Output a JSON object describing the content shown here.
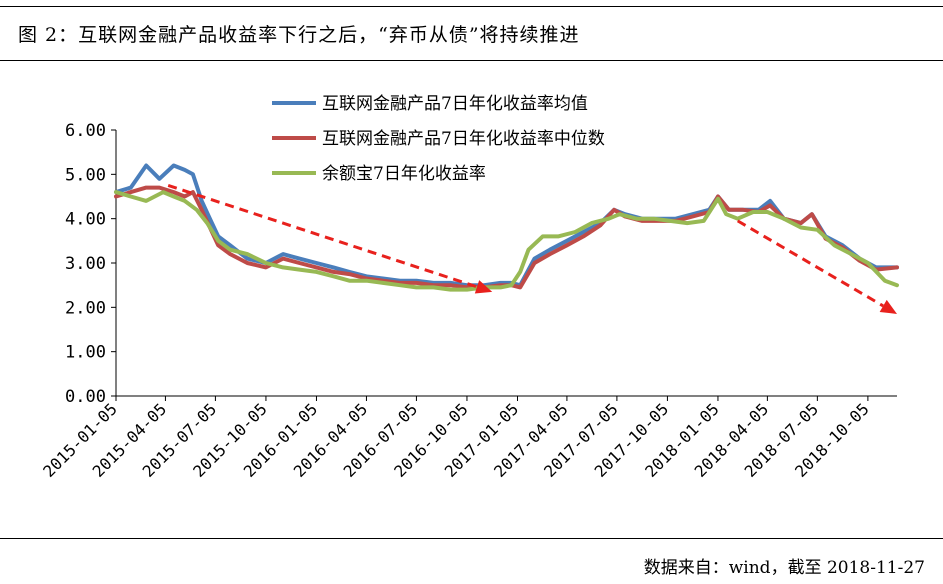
{
  "figure": {
    "title": "图 2：互联网金融产品收益率下行之后，“弃币从债”将持续推进",
    "source": "数据来自：wind，截至 2018-11-27"
  },
  "chart_data": {
    "type": "line",
    "ylim": [
      0,
      6
    ],
    "y_ticks": [
      "0.00",
      "1.00",
      "2.00",
      "3.00",
      "4.00",
      "5.00",
      "6.00"
    ],
    "x_range": [
      "2015-01-05",
      "2018-11-27"
    ],
    "x_ticks": [
      "2015-01-05",
      "2015-04-05",
      "2015-07-05",
      "2015-10-05",
      "2016-01-05",
      "2016-04-05",
      "2016-07-05",
      "2016-10-05",
      "2017-01-05",
      "2017-04-05",
      "2017-07-05",
      "2017-10-05",
      "2018-01-05",
      "2018-04-05",
      "2018-07-05",
      "2018-10-05"
    ],
    "grid": false,
    "legend": "top-left",
    "series": [
      {
        "name": "互联网金融产品7日年化收益率均值",
        "color": "#4a7ebb",
        "x": [
          "2015-01-05",
          "2015-02-01",
          "2015-03-01",
          "2015-03-25",
          "2015-04-20",
          "2015-05-10",
          "2015-05-25",
          "2015-06-10",
          "2015-06-25",
          "2015-07-10",
          "2015-08-01",
          "2015-09-01",
          "2015-10-05",
          "2015-11-05",
          "2015-12-05",
          "2016-01-05",
          "2016-02-05",
          "2016-03-05",
          "2016-04-05",
          "2016-05-05",
          "2016-06-05",
          "2016-07-05",
          "2016-08-05",
          "2016-09-05",
          "2016-10-05",
          "2016-11-05",
          "2016-12-05",
          "2016-12-25",
          "2017-01-10",
          "2017-02-05",
          "2017-03-05",
          "2017-04-05",
          "2017-05-05",
          "2017-06-05",
          "2017-06-30",
          "2017-07-20",
          "2017-08-20",
          "2017-09-20",
          "2017-10-20",
          "2017-11-20",
          "2017-12-20",
          "2018-01-05",
          "2018-01-25",
          "2018-02-20",
          "2018-03-20",
          "2018-04-10",
          "2018-05-05",
          "2018-06-05",
          "2018-06-25",
          "2018-07-20",
          "2018-08-20",
          "2018-09-20",
          "2018-10-20",
          "2018-11-27"
        ],
        "y": [
          4.6,
          4.7,
          5.2,
          4.9,
          5.2,
          5.1,
          5.0,
          4.4,
          4.0,
          3.6,
          3.4,
          3.1,
          3.0,
          3.2,
          3.1,
          3.0,
          2.9,
          2.8,
          2.7,
          2.65,
          2.6,
          2.6,
          2.55,
          2.55,
          2.5,
          2.5,
          2.55,
          2.55,
          2.5,
          3.1,
          3.3,
          3.5,
          3.7,
          3.9,
          4.2,
          4.1,
          4.0,
          4.0,
          4.0,
          4.1,
          4.2,
          4.5,
          4.2,
          4.2,
          4.2,
          4.4,
          4.0,
          3.9,
          4.1,
          3.6,
          3.4,
          3.1,
          2.9,
          2.9
        ]
      },
      {
        "name": "互联网金融产品7日年化收益率中位数",
        "color": "#be4b48",
        "x": [
          "2015-01-05",
          "2015-02-01",
          "2015-03-01",
          "2015-03-25",
          "2015-04-20",
          "2015-05-10",
          "2015-05-25",
          "2015-06-10",
          "2015-06-25",
          "2015-07-10",
          "2015-08-01",
          "2015-09-01",
          "2015-10-05",
          "2015-11-05",
          "2015-12-05",
          "2016-01-05",
          "2016-02-05",
          "2016-03-05",
          "2016-04-05",
          "2016-05-05",
          "2016-06-05",
          "2016-07-05",
          "2016-08-05",
          "2016-09-05",
          "2016-10-05",
          "2016-11-05",
          "2016-12-05",
          "2016-12-25",
          "2017-01-10",
          "2017-02-05",
          "2017-03-05",
          "2017-04-05",
          "2017-05-05",
          "2017-06-05",
          "2017-06-30",
          "2017-07-20",
          "2017-08-20",
          "2017-09-20",
          "2017-10-20",
          "2017-11-20",
          "2017-12-20",
          "2018-01-05",
          "2018-01-25",
          "2018-02-20",
          "2018-03-20",
          "2018-04-10",
          "2018-05-05",
          "2018-06-05",
          "2018-06-25",
          "2018-07-20",
          "2018-08-20",
          "2018-09-20",
          "2018-10-20",
          "2018-11-27"
        ],
        "y": [
          4.5,
          4.6,
          4.7,
          4.7,
          4.6,
          4.5,
          4.6,
          4.2,
          3.8,
          3.4,
          3.2,
          3.0,
          2.9,
          3.1,
          3.0,
          2.9,
          2.8,
          2.75,
          2.65,
          2.6,
          2.55,
          2.55,
          2.5,
          2.5,
          2.45,
          2.45,
          2.5,
          2.5,
          2.45,
          3.0,
          3.2,
          3.4,
          3.6,
          3.85,
          4.2,
          4.05,
          3.95,
          3.95,
          3.95,
          4.05,
          4.15,
          4.5,
          4.2,
          4.2,
          4.15,
          4.3,
          4.0,
          3.9,
          4.1,
          3.55,
          3.35,
          3.05,
          2.85,
          2.9
        ]
      },
      {
        "name": "余额宝7日年化收益率",
        "color": "#98b954",
        "x": [
          "2015-01-05",
          "2015-02-01",
          "2015-03-01",
          "2015-04-01",
          "2015-04-20",
          "2015-05-10",
          "2015-06-01",
          "2015-06-20",
          "2015-07-10",
          "2015-08-01",
          "2015-09-01",
          "2015-10-05",
          "2015-11-05",
          "2015-12-05",
          "2016-01-05",
          "2016-02-05",
          "2016-03-05",
          "2016-04-05",
          "2016-05-05",
          "2016-06-05",
          "2016-07-05",
          "2016-08-05",
          "2016-09-05",
          "2016-10-05",
          "2016-11-05",
          "2016-12-05",
          "2016-12-25",
          "2017-01-10",
          "2017-01-25",
          "2017-02-20",
          "2017-03-20",
          "2017-04-20",
          "2017-05-20",
          "2017-06-20",
          "2017-07-10",
          "2017-08-10",
          "2017-09-10",
          "2017-10-10",
          "2017-11-10",
          "2017-12-10",
          "2018-01-05",
          "2018-01-20",
          "2018-02-10",
          "2018-03-10",
          "2018-04-05",
          "2018-05-05",
          "2018-06-05",
          "2018-07-05",
          "2018-08-05",
          "2018-09-05",
          "2018-10-05",
          "2018-11-05",
          "2018-11-27"
        ],
        "y": [
          4.6,
          4.5,
          4.4,
          4.6,
          4.5,
          4.4,
          4.2,
          3.9,
          3.5,
          3.3,
          3.2,
          3.0,
          2.9,
          2.85,
          2.8,
          2.7,
          2.6,
          2.6,
          2.55,
          2.5,
          2.45,
          2.45,
          2.4,
          2.4,
          2.45,
          2.45,
          2.5,
          2.8,
          3.3,
          3.6,
          3.6,
          3.7,
          3.9,
          4.0,
          4.1,
          4.0,
          4.0,
          3.95,
          3.9,
          3.95,
          4.45,
          4.1,
          4.0,
          4.15,
          4.15,
          4.0,
          3.8,
          3.75,
          3.4,
          3.2,
          3.0,
          2.6,
          2.5
        ]
      }
    ],
    "annotations": [
      {
        "type": "dashed-arrow",
        "color": "#e8211d",
        "from": [
          "2015-04-10",
          4.75
        ],
        "to": [
          "2016-11-20",
          2.35
        ]
      },
      {
        "type": "dashed-arrow",
        "color": "#e8211d",
        "from": [
          "2018-02-10",
          3.95
        ],
        "to": [
          "2018-11-27",
          1.85
        ]
      }
    ]
  }
}
